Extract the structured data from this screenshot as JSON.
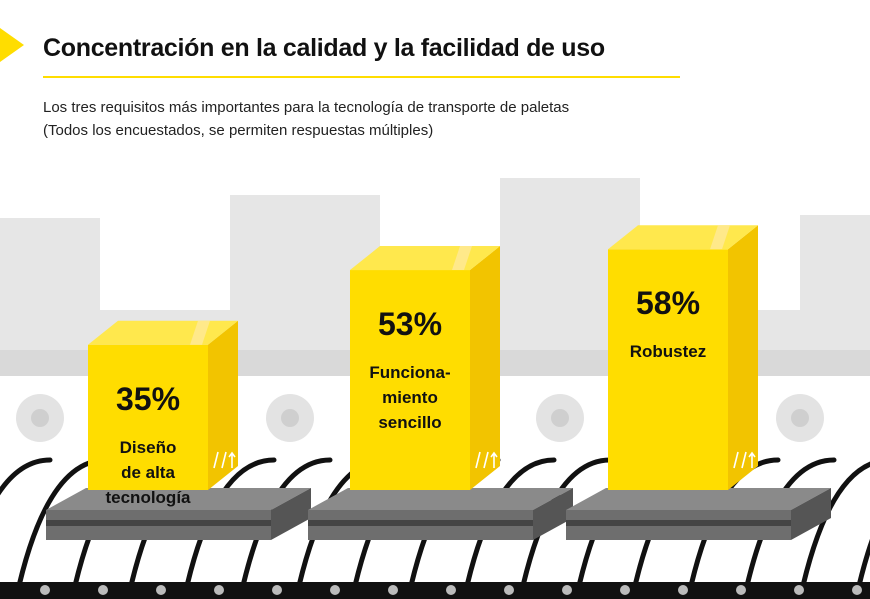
{
  "header": {
    "title": "Concentración en la calidad y la facilidad de uso",
    "subtitle_line1": "Los tres requisitos más importantes para la tecnología de transporte de paletas",
    "subtitle_line2": "(Todos los encuestados, se permiten respuestas múltiples)"
  },
  "colors": {
    "accent": "#ffdd00",
    "box_front": "#ffdd00",
    "box_side": "#f2c400",
    "box_top": "#ffe84d",
    "pallet": "#6e6e6e",
    "background_shapes": "#e6e6e6",
    "conveyor": "#111111"
  },
  "chart_data": {
    "type": "bar",
    "title": "Concentración en la calidad y la facilidad de uso",
    "subtitle": "Los tres requisitos más importantes para la tecnología de transporte de paletas (Todos los encuestados, se permiten respuestas múltiples)",
    "categories": [
      "Diseño de alta tecnología",
      "Funcionamiento sencillo",
      "Robustez"
    ],
    "category_lines": [
      [
        "Diseño",
        "de alta",
        "tecnología"
      ],
      [
        "Funciona-",
        "miento",
        "sencillo"
      ],
      [
        "Robustez"
      ]
    ],
    "values": [
      35,
      53,
      58
    ],
    "value_labels": [
      "35%",
      "53%",
      "58%"
    ],
    "unit": "%"
  }
}
